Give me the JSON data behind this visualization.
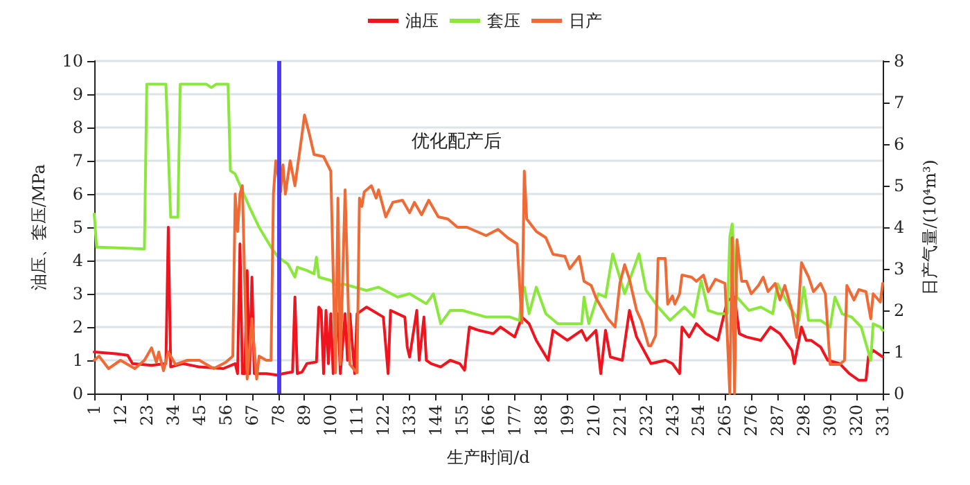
{
  "chart_data": {
    "type": "line",
    "xlabel": "生产时间/d",
    "ylabel": "油压、套压/MPa",
    "y2label": "日产气量/(10⁴m³)",
    "annotations": [
      "优化配产后"
    ],
    "xlim": [
      1,
      331
    ],
    "xticks": [
      1,
      12,
      23,
      34,
      45,
      56,
      67,
      78,
      89,
      100,
      111,
      122,
      133,
      144,
      155,
      166,
      177,
      188,
      199,
      210,
      221,
      232,
      243,
      254,
      265,
      276,
      287,
      298,
      309,
      320,
      331
    ],
    "ylim": [
      0,
      10
    ],
    "yticks": [
      0,
      1,
      2,
      3,
      4,
      5,
      6,
      7,
      8,
      9,
      10
    ],
    "y2lim": [
      0,
      8
    ],
    "y2ticks": [
      0,
      1,
      2,
      3,
      4,
      5,
      6,
      7,
      8
    ],
    "grid": "y",
    "legend": "top",
    "marker": "none",
    "line_style": "solid",
    "ref_lines": [
      {
        "axis": "x",
        "value": 78,
        "color": "#4a3cf0"
      }
    ],
    "series": [
      {
        "name": "油压",
        "color": "#f0141e",
        "x": [
          1,
          10,
          15,
          17,
          25,
          31,
          32,
          33,
          38,
          45,
          55,
          60,
          61,
          62,
          63,
          64,
          65,
          66,
          67,
          68,
          69,
          73,
          78,
          80,
          84,
          85,
          86,
          88,
          90,
          94,
          95,
          96,
          97,
          98,
          99,
          100,
          101,
          103,
          104,
          106,
          107,
          108,
          110,
          111,
          115,
          122,
          124,
          125,
          131,
          132,
          133,
          136,
          137,
          139,
          140,
          142,
          146,
          150,
          154,
          156,
          158,
          162,
          168,
          171,
          177,
          180,
          183,
          186,
          191,
          193,
          199,
          205,
          207,
          211,
          213,
          215,
          217,
          222,
          225,
          228,
          234,
          240,
          243,
          246,
          247,
          250,
          253,
          257,
          262,
          266,
          269,
          271,
          274,
          280,
          284,
          288,
          293,
          294,
          297,
          299,
          301,
          305,
          308,
          313,
          317,
          321,
          324,
          325,
          327,
          331
        ],
        "values": [
          1.25,
          1.2,
          1.15,
          0.9,
          0.85,
          0.9,
          5.0,
          0.8,
          0.9,
          0.8,
          0.75,
          0.9,
          0.6,
          4.5,
          0.6,
          0.6,
          3.7,
          0.6,
          3.5,
          0.6,
          0.6,
          0.6,
          0.55,
          0.6,
          0.65,
          2.9,
          0.6,
          0.65,
          0.9,
          0.95,
          2.6,
          2.5,
          0.6,
          2.5,
          0.9,
          2.4,
          0.6,
          2.4,
          0.6,
          2.4,
          1.0,
          2.4,
          0.6,
          2.4,
          2.6,
          2.3,
          0.6,
          2.5,
          2.3,
          1.4,
          1.1,
          2.5,
          1.0,
          2.3,
          1.0,
          0.9,
          0.8,
          1.0,
          0.9,
          0.7,
          2.0,
          1.9,
          1.8,
          2.0,
          1.7,
          2.3,
          2.1,
          1.6,
          1.0,
          1.9,
          1.6,
          1.9,
          1.6,
          1.9,
          0.6,
          1.9,
          1.1,
          1.0,
          2.5,
          1.7,
          0.9,
          1.0,
          0.9,
          0.6,
          2.0,
          1.7,
          2.1,
          1.8,
          1.6,
          2.8,
          2.9,
          1.8,
          1.7,
          1.6,
          2.0,
          1.8,
          1.3,
          0.9,
          2.0,
          1.6,
          1.6,
          1.4,
          1.0,
          0.9,
          0.6,
          0.4,
          0.4,
          1.1,
          1.3,
          1.1
        ]
      },
      {
        "name": "套压",
        "color": "#8ae83c",
        "x": [
          1,
          2,
          3,
          22,
          23,
          31,
          33,
          36,
          37,
          48,
          50,
          52,
          57,
          58,
          60,
          63,
          66,
          70,
          75,
          78,
          82,
          85,
          86,
          90,
          93,
          94,
          95,
          100,
          103,
          105,
          115,
          120,
          128,
          133,
          140,
          143,
          146,
          150,
          155,
          165,
          175,
          179,
          180,
          181,
          183,
          186,
          190,
          195,
          205,
          206,
          208,
          212,
          215,
          218,
          223,
          229,
          232,
          237,
          242,
          248,
          252,
          255,
          258,
          262,
          266,
          267,
          268,
          270,
          275,
          280,
          285,
          287,
          292,
          296,
          298,
          300,
          305,
          309,
          311,
          314,
          318,
          322,
          326,
          327,
          330,
          331
        ],
        "values": [
          5.4,
          4.4,
          4.4,
          4.35,
          9.3,
          9.3,
          5.3,
          5.3,
          9.3,
          9.3,
          9.2,
          9.3,
          9.3,
          6.7,
          6.6,
          6.1,
          5.6,
          5.0,
          4.4,
          4.1,
          3.9,
          3.5,
          3.8,
          3.7,
          3.6,
          4.1,
          3.5,
          3.4,
          3.2,
          3.3,
          3.1,
          3.2,
          2.9,
          3.0,
          2.7,
          3.0,
          2.1,
          2.5,
          2.5,
          2.3,
          2.3,
          2.2,
          3.1,
          3.2,
          2.4,
          3.2,
          2.4,
          2.1,
          2.1,
          2.9,
          2.1,
          3.0,
          2.9,
          4.2,
          3.0,
          4.2,
          3.1,
          2.6,
          2.2,
          2.6,
          2.3,
          3.4,
          2.5,
          2.4,
          2.4,
          4.7,
          5.1,
          2.9,
          2.5,
          2.6,
          2.4,
          3.3,
          2.6,
          2.2,
          3.2,
          2.2,
          2.2,
          2.0,
          2.9,
          2.4,
          2.3,
          2.0,
          1.0,
          2.1,
          2.0,
          1.9
        ]
      },
      {
        "name": "日产",
        "color": "#f06a35",
        "axis": "y2",
        "x": [
          1,
          3,
          7,
          12,
          18,
          22,
          25,
          27,
          28,
          30,
          32,
          35,
          40,
          45,
          51,
          56,
          59,
          60,
          61,
          62,
          63,
          65,
          67,
          69,
          70,
          73,
          75,
          76,
          77,
          79,
          80,
          81,
          83,
          85,
          88,
          89,
          91,
          93,
          97,
          100,
          102,
          103,
          104,
          106,
          108,
          111,
          112,
          113,
          114,
          117,
          119,
          120,
          123,
          126,
          130,
          133,
          135,
          138,
          141,
          145,
          149,
          153,
          157,
          161,
          165,
          170,
          174,
          178,
          180,
          181,
          182,
          186,
          190,
          193,
          198,
          200,
          204,
          206,
          209,
          211,
          214,
          216,
          219,
          221,
          223,
          225,
          228,
          230,
          233,
          234,
          236,
          237,
          240,
          241,
          243,
          244,
          246,
          247,
          251,
          253,
          256,
          258,
          261,
          265,
          267,
          268,
          269,
          270,
          272,
          274,
          276,
          279,
          281,
          283,
          286,
          288,
          290,
          293,
          295,
          297,
          300,
          302,
          305,
          307,
          309,
          313,
          315,
          316,
          319,
          321,
          324,
          326,
          327,
          330,
          331
        ],
        "values": [
          0.8,
          0.9,
          0.6,
          0.8,
          0.6,
          0.8,
          1.1,
          0.75,
          1.0,
          0.55,
          1.0,
          0.7,
          0.8,
          0.8,
          0.6,
          0.75,
          0.9,
          4.8,
          3.9,
          4.8,
          5.0,
          0.35,
          1.8,
          0.35,
          0.9,
          0.8,
          0.8,
          4.8,
          5.6,
          4.85,
          5.5,
          4.8,
          5.6,
          5.0,
          6.25,
          6.7,
          6.25,
          5.75,
          5.7,
          5.35,
          0.5,
          4.7,
          0.7,
          4.9,
          0.7,
          0.5,
          4.7,
          4.5,
          4.85,
          5.0,
          4.7,
          4.9,
          4.25,
          4.6,
          4.65,
          4.35,
          4.6,
          4.3,
          4.65,
          4.25,
          4.2,
          4.0,
          4.0,
          3.9,
          3.8,
          3.95,
          3.75,
          3.6,
          1.7,
          5.35,
          4.2,
          3.9,
          3.75,
          3.35,
          3.3,
          3.0,
          3.3,
          2.7,
          2.6,
          2.3,
          2.0,
          1.8,
          1.6,
          2.65,
          3.1,
          2.75,
          2.0,
          1.75,
          1.15,
          1.15,
          1.4,
          3.25,
          3.25,
          2.15,
          2.35,
          2.15,
          2.4,
          2.85,
          2.8,
          2.7,
          2.85,
          2.45,
          2.75,
          2.65,
          0,
          3.75,
          0,
          3.7,
          2.7,
          2.7,
          2.4,
          2.6,
          2.8,
          2.45,
          2.65,
          2.25,
          2.6,
          2.0,
          1.35,
          3.15,
          2.8,
          2.45,
          2.65,
          2.4,
          0.7,
          0.7,
          0.8,
          2.6,
          2.25,
          2.5,
          2.45,
          1.8,
          2.4,
          2.2,
          2.65
        ]
      }
    ]
  }
}
